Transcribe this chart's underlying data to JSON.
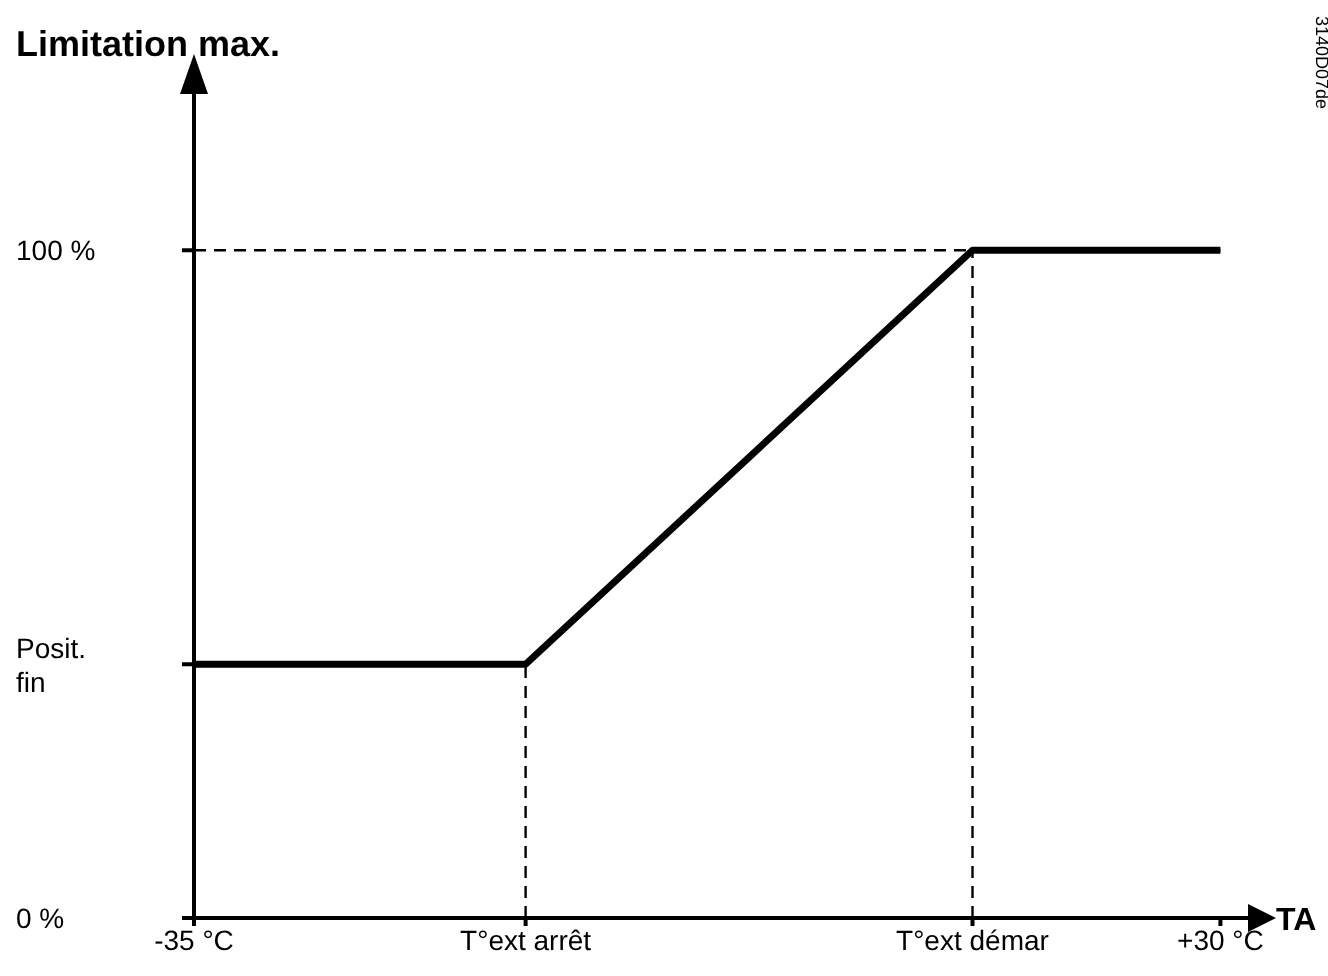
{
  "chart_data": {
    "type": "line",
    "title": "Limitation max.",
    "xlabel": "TA",
    "annotations": [
      "3140D07de"
    ],
    "x": [
      -35,
      -14,
      14.3,
      30
    ],
    "series": [
      {
        "color": "#000000",
        "values": [
          38,
          38,
          100,
          100
        ]
      }
    ],
    "xlim": [
      -35,
      32
    ],
    "ylim": [
      0,
      124
    ],
    "xticks": [
      {
        "value": -35,
        "label": "-35 °C"
      },
      {
        "value": -14,
        "label": "T°ext arrêt"
      },
      {
        "value": 14.3,
        "label": "T°ext démar"
      },
      {
        "value": 30,
        "label": "+30 °C"
      }
    ],
    "yticks": [
      {
        "value": 0,
        "label": "0 %"
      },
      {
        "value": 38,
        "label": "Posit. fin"
      },
      {
        "value": 100,
        "label": "100 %"
      }
    ],
    "ref_lines": [
      {
        "axis": "y",
        "value": 100,
        "line_style": "dashed",
        "color": "#000000"
      },
      {
        "axis": "x",
        "value": -14,
        "line_style": "dashed",
        "color": "#000000"
      },
      {
        "axis": "x",
        "value": 14.3,
        "line_style": "dashed",
        "color": "#000000"
      }
    ],
    "grid": false,
    "legend": false,
    "marker": "none",
    "line_style": "solid"
  }
}
